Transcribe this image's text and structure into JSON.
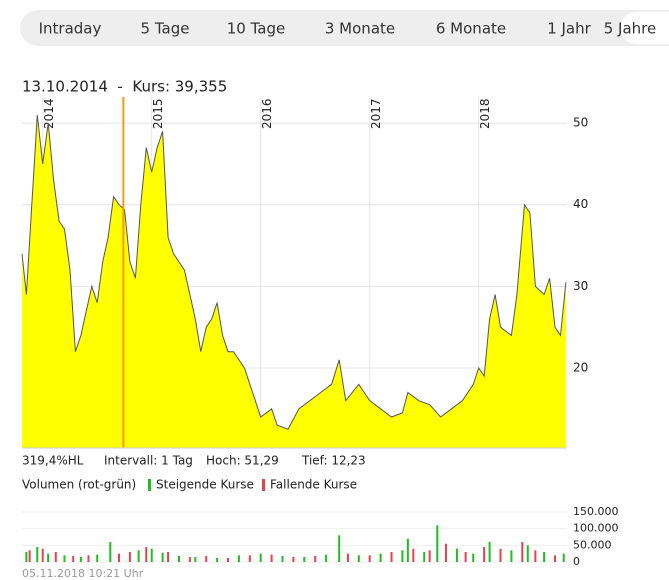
{
  "tabs": [
    "Intraday",
    "5 Tage",
    "10 Tage",
    "3 Monate",
    "6 Monate",
    "1 Jahr",
    "5 Jahre"
  ],
  "active_tab": 6,
  "chart_data": [
    {
      "type": "area",
      "title": "13.10.2014  -  Kurs: 39,355",
      "xlim": [
        2013.81,
        2018.81
      ],
      "xticks": [
        {
          "value": 2014,
          "label": "2014"
        },
        {
          "value": 2015,
          "label": "2015"
        },
        {
          "value": 2016,
          "label": "2016"
        },
        {
          "value": 2017,
          "label": "2017"
        },
        {
          "value": 2018,
          "label": "2018"
        }
      ],
      "ylim": [
        10.2,
        53.2
      ],
      "yticks": [
        20,
        30,
        40,
        50
      ],
      "grid": true,
      "crosshair_x": 2014.74,
      "annotations": [
        "319,4%HL",
        "Intervall: 1 Tag",
        "Hoch: 51,29",
        "Tief: 12,23"
      ],
      "series": [
        {
          "color": "#ffff00",
          "x": [
            2013.81,
            2013.85,
            2013.9,
            2013.95,
            2014.0,
            2014.05,
            2014.1,
            2014.15,
            2014.2,
            2014.25,
            2014.3,
            2014.35,
            2014.4,
            2014.45,
            2014.5,
            2014.55,
            2014.6,
            2014.65,
            2014.7,
            2014.75,
            2014.8,
            2014.85,
            2014.9,
            2014.95,
            2015.0,
            2015.05,
            2015.1,
            2015.15,
            2015.2,
            2015.3,
            2015.35,
            2015.4,
            2015.45,
            2015.5,
            2015.55,
            2015.6,
            2015.65,
            2015.7,
            2015.75,
            2015.85,
            2015.95,
            2016.0,
            2016.1,
            2016.15,
            2016.25,
            2016.35,
            2016.45,
            2016.55,
            2016.65,
            2016.72,
            2016.78,
            2016.9,
            2017.0,
            2017.1,
            2017.2,
            2017.3,
            2017.35,
            2017.45,
            2017.55,
            2017.65,
            2017.75,
            2017.85,
            2017.95,
            2018.0,
            2018.05,
            2018.1,
            2018.15,
            2018.2,
            2018.3,
            2018.35,
            2018.42,
            2018.47,
            2018.52,
            2018.6,
            2018.65,
            2018.7,
            2018.75,
            2018.8
          ],
          "values": [
            34,
            29,
            40,
            51,
            45,
            50,
            43,
            38,
            37,
            32,
            22,
            24,
            27,
            30,
            28,
            33,
            36,
            41,
            40,
            39.4,
            33,
            31,
            40,
            47,
            44,
            47,
            49,
            36,
            34,
            32,
            29,
            26,
            22,
            25,
            26,
            28,
            24,
            22,
            22,
            20,
            16,
            14,
            15,
            13,
            12.5,
            15,
            16,
            17,
            18,
            21,
            16,
            18,
            16,
            15,
            14,
            14.5,
            17,
            16,
            15.5,
            14,
            15,
            16,
            18,
            20,
            19,
            26,
            29,
            25,
            24,
            29,
            40,
            39,
            30,
            29,
            31,
            25,
            24,
            30.5
          ]
        }
      ]
    },
    {
      "type": "bar",
      "title": "Volumen (rot-grün)",
      "xlim": [
        2013.81,
        2018.81
      ],
      "ylim": [
        0,
        195000
      ],
      "yticks": [
        0,
        {
          "value": 50000,
          "label": "50.000"
        },
        {
          "value": 100000,
          "label": "100.000"
        },
        {
          "value": 150000,
          "label": "150.000"
        }
      ],
      "series": [
        {
          "name": "Steigende Kurse",
          "color": "#22bb22",
          "x": [
            2013.85,
            2013.95,
            2014.05,
            2014.2,
            2014.35,
            2014.5,
            2014.62,
            2014.88,
            2015.0,
            2015.1,
            2015.25,
            2015.4,
            2015.6,
            2015.8,
            2016.0,
            2016.2,
            2016.4,
            2016.6,
            2016.72,
            2016.9,
            2017.1,
            2017.3,
            2017.35,
            2017.5,
            2017.62,
            2017.8,
            2017.95,
            2018.1,
            2018.3,
            2018.45,
            2018.6,
            2018.78
          ],
          "values": [
            30000,
            45000,
            25000,
            20000,
            15000,
            22000,
            60000,
            35000,
            40000,
            28000,
            18000,
            15000,
            12000,
            20000,
            25000,
            18000,
            15000,
            22000,
            80000,
            20000,
            25000,
            35000,
            70000,
            30000,
            110000,
            40000,
            25000,
            60000,
            35000,
            50000,
            30000,
            25000
          ]
        },
        {
          "name": "Fallende Kurse",
          "color": "#e8414e",
          "x": [
            2013.88,
            2014.0,
            2014.12,
            2014.28,
            2014.42,
            2014.7,
            2014.8,
            2014.95,
            2015.15,
            2015.35,
            2015.5,
            2015.7,
            2015.9,
            2016.1,
            2016.3,
            2016.5,
            2016.8,
            2017.0,
            2017.2,
            2017.4,
            2017.55,
            2017.7,
            2017.88,
            2018.05,
            2018.2,
            2018.4,
            2018.52,
            2018.7
          ],
          "values": [
            35000,
            40000,
            30000,
            18000,
            20000,
            25000,
            30000,
            45000,
            30000,
            15000,
            18000,
            12000,
            20000,
            22000,
            15000,
            18000,
            25000,
            20000,
            30000,
            40000,
            35000,
            55000,
            30000,
            45000,
            40000,
            60000,
            35000,
            20000
          ]
        }
      ]
    }
  ],
  "timestamp": "05.11.2018 10:21 Uhr"
}
